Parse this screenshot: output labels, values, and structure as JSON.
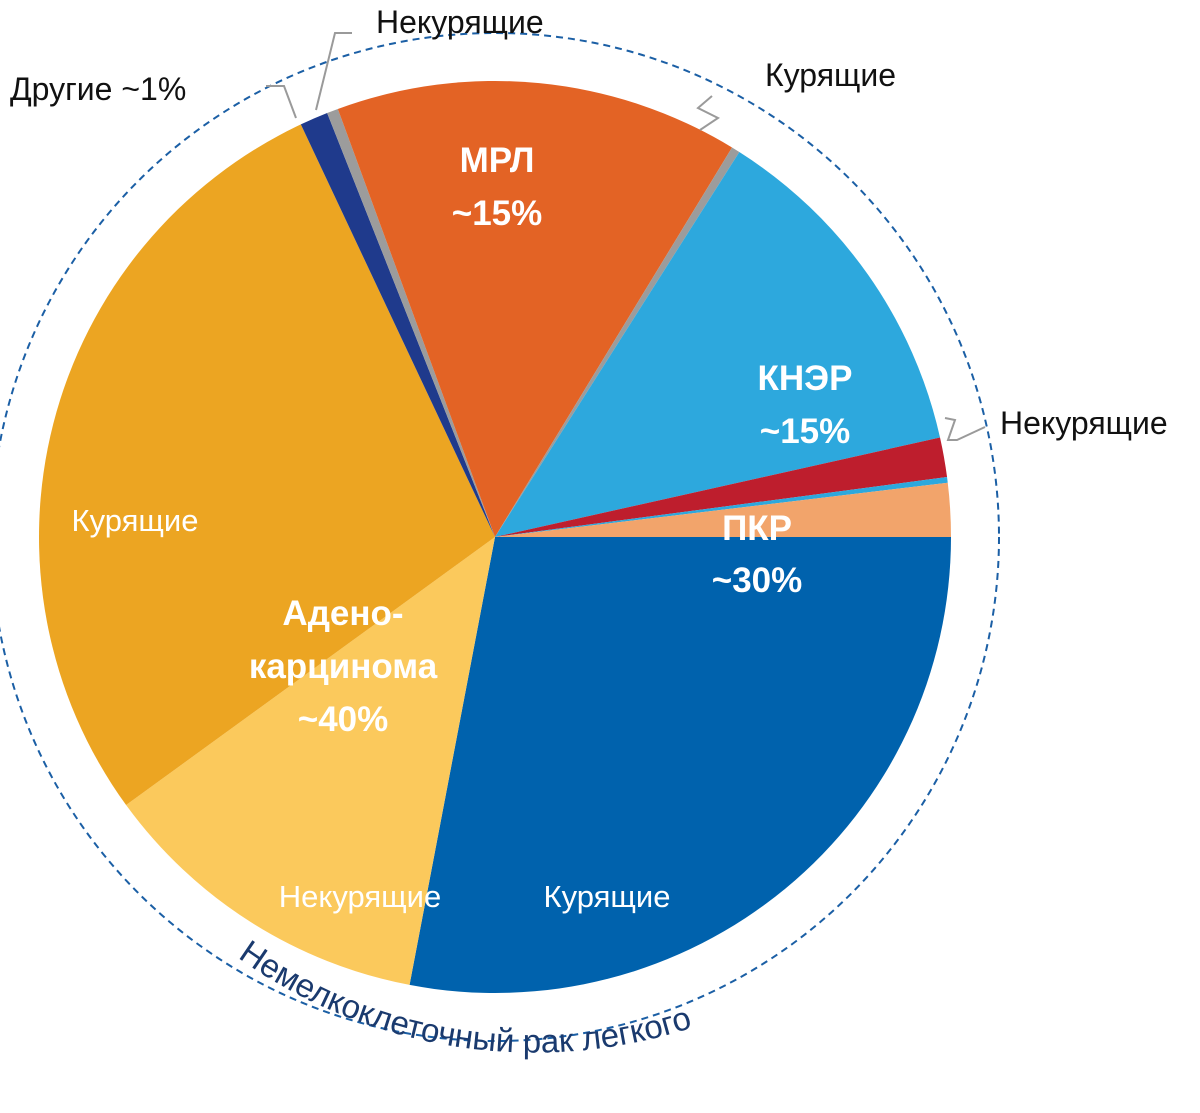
{
  "chart_data": {
    "type": "pie",
    "title": "",
    "slices": [
      {
        "key": "squamous_smokers",
        "group": "ПКР",
        "label": "Курящие",
        "value": 28,
        "color": "#0062ad"
      },
      {
        "key": "adeno_nonsmokers",
        "group": "Аденокарцинома",
        "label": "Некурящие",
        "value": 12,
        "color": "#fbc95c"
      },
      {
        "key": "adeno_smokers",
        "group": "Аденокарцинома",
        "label": "Курящие",
        "value": 28,
        "color": "#eca522"
      },
      {
        "key": "other",
        "group": "Другие",
        "label": "Другие ~1%",
        "value": 1,
        "color": "#1f3a8c"
      },
      {
        "key": "sclc_nonsmokers",
        "group": "МРЛ",
        "label": "Некурящие",
        "value": 0.4,
        "color": "#9c9c9c"
      },
      {
        "key": "sclc_smokers",
        "group": "МРЛ",
        "label": "",
        "value": 14.3,
        "color": "#e36325"
      },
      {
        "key": "lcnec_gap",
        "group": "МРЛ",
        "label": "",
        "value": 0.3,
        "color": "#9c9c9c"
      },
      {
        "key": "lcnec_smokers",
        "group": "КНЭР",
        "label": "Курящие",
        "value": 12.5,
        "color": "#2da8dd"
      },
      {
        "key": "lcnec_red",
        "group": "КНЭР",
        "label": "",
        "value": 1.4,
        "color": "#be1e2d"
      },
      {
        "key": "lcnec_nonsmokers",
        "group": "КНЭР",
        "label": "Некурящие",
        "value": 0.2,
        "color": "#2da8dd"
      },
      {
        "key": "squamous_nonsmokers",
        "group": "ПКР",
        "label": "",
        "value": 1.9,
        "color": "#f2a46b"
      }
    ],
    "group_labels": {
      "mrl": {
        "name": "МРЛ",
        "value": "~15%"
      },
      "kner": {
        "name": "КНЭР",
        "value": "~15%"
      },
      "pkr": {
        "name": "ПКР",
        "value": "~30%"
      },
      "adeno": {
        "line1": "Адено-",
        "line2": "карцинома",
        "value": "~40%"
      }
    },
    "inner_labels": {
      "adeno_smokers": "Курящие",
      "adeno_nonsmokers": "Некурящие",
      "pkr_smokers": "Курящие"
    },
    "outer_labels": {
      "other": "Другие ~1%",
      "mrl_nonsmokers": "Некурящие",
      "kner_smokers": "Курящие",
      "kner_nonsmokers": "Некурящие"
    },
    "arc_label": "Немелкоклеточный рак легкого",
    "legend": "none"
  }
}
